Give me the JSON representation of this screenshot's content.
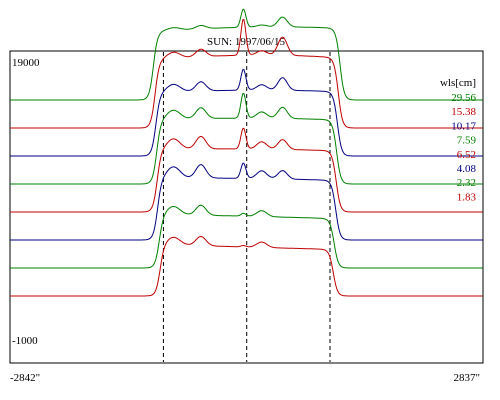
{
  "chart_data": {
    "type": "line",
    "title": "SUN: 1997/06/15",
    "y_top_label": "19000",
    "y_bottom_label": "-1000",
    "x_left_label": "-2842\"",
    "x_right_label": "2837\"",
    "ylim": [
      -1000,
      19000
    ],
    "xlim": [
      -2842,
      2837
    ],
    "legend_title": "wls[cm]",
    "legend_position": "top-right",
    "vlines": [
      -1000,
      0,
      1000
    ],
    "series": [
      {
        "name": "29.56",
        "color": "#008000",
        "baseline": 16000,
        "plateau": 4500,
        "peak": 1300,
        "knee": 400,
        "bump": 700,
        "lift": 700,
        "skew": 0.15,
        "width": 1120
      },
      {
        "name": "15.38",
        "color": "#c00000",
        "baseline": 14000,
        "plateau": 4300,
        "peak": 2600,
        "knee": 900,
        "bump": 1300,
        "lift": 900,
        "skew": 0.1,
        "width": 1100
      },
      {
        "name": "10.17",
        "color": "#000080",
        "baseline": 12000,
        "plateau": 4200,
        "peak": 1500,
        "knee": 1100,
        "bump": 900,
        "lift": 500,
        "skew": 0.05,
        "width": 1090
      },
      {
        "name": "7.59",
        "color": "#008000",
        "baseline": 10000,
        "plateau": 4300,
        "peak": 1800,
        "knee": 1300,
        "bump": 800,
        "lift": 400,
        "skew": 0.0,
        "width": 1080
      },
      {
        "name": "6.52",
        "color": "#c00000",
        "baseline": 8000,
        "plateau": 4200,
        "peak": 1500,
        "knee": 1500,
        "bump": 700,
        "lift": 300,
        "skew": -0.05,
        "width": 1075
      },
      {
        "name": "4.08",
        "color": "#000080",
        "baseline": 6000,
        "plateau": 4200,
        "peak": 1100,
        "knee": 1600,
        "bump": 600,
        "lift": 200,
        "skew": -0.1,
        "width": 1070
      },
      {
        "name": "2.32",
        "color": "#008000",
        "baseline": 4000,
        "plateau": 3600,
        "peak": 200,
        "knee": 1200,
        "bump": 0,
        "lift": 100,
        "skew": -0.2,
        "width": 1050
      },
      {
        "name": "1.83",
        "color": "#c00000",
        "baseline": 2000,
        "plateau": 3500,
        "peak": 100,
        "knee": 1100,
        "bump": 0,
        "lift": 0,
        "skew": -0.25,
        "width": 1040
      }
    ]
  }
}
